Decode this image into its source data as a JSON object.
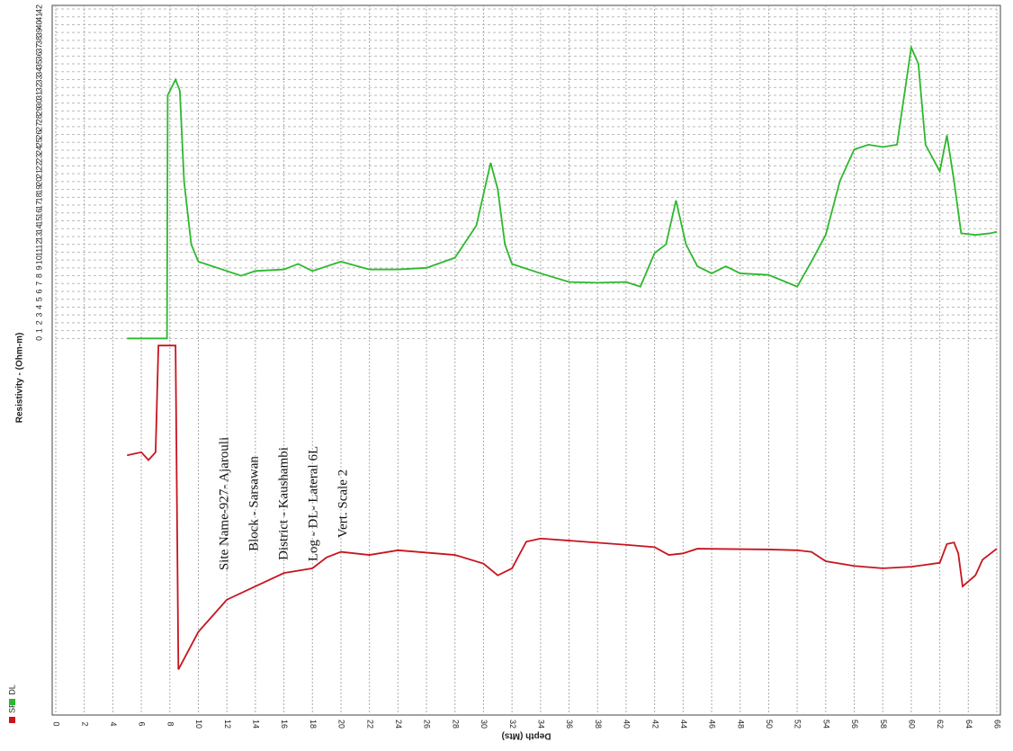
{
  "chart_data": {
    "type": "line",
    "xlabel": "Depth (Mts)",
    "ylabel": "Resistivity - (Ohm-m)",
    "annotations": [
      "Site Name-927- Ajarouli",
      "Block - Sarsawan",
      "District - Kaushambi",
      "Log - DL- Lateral 6L",
      "Vert. Scale 2"
    ],
    "xlim": [
      0,
      66
    ],
    "xticks": [
      0,
      2,
      4,
      6,
      8,
      10,
      12,
      14,
      16,
      18,
      20,
      22,
      24,
      26,
      28,
      30,
      32,
      34,
      36,
      38,
      40,
      42,
      44,
      46,
      48,
      50,
      52,
      54,
      56,
      58,
      60,
      62,
      64,
      66
    ],
    "ylim": [
      -48,
      42
    ],
    "yticks": [
      0,
      1,
      2,
      3,
      4,
      5,
      6,
      7,
      8,
      9,
      10,
      11,
      12,
      13,
      14,
      15,
      16,
      17,
      18,
      19,
      20,
      21,
      22,
      23,
      24,
      25,
      26,
      27,
      28,
      29,
      30,
      31,
      32,
      33,
      34,
      35,
      36,
      37,
      38,
      39,
      40,
      41,
      42
    ],
    "grid": true,
    "legend": "bottom-left",
    "series": [
      {
        "name": "SP",
        "color": "#c8141e",
        "x": [
          5,
          6,
          6.5,
          7,
          7.2,
          8.4,
          8.6,
          10,
          12,
          14,
          16,
          18,
          19,
          20,
          22,
          24,
          28,
          30,
          31,
          32,
          33,
          34,
          40,
          42,
          43,
          44,
          45,
          50,
          52,
          53,
          54,
          56,
          58,
          60,
          62,
          62.5,
          63,
          63.3,
          63.6,
          64.5,
          65,
          66
        ],
        "values": [
          -14.9,
          -14.5,
          -15.5,
          -14.5,
          -0.9,
          -0.9,
          -42.2,
          -37.4,
          -33.3,
          -31.6,
          -29.9,
          -29.3,
          -27.9,
          -27.2,
          -27.6,
          -27.0,
          -27.6,
          -28.7,
          -30.2,
          -29.3,
          -25.9,
          -25.5,
          -26.3,
          -26.6,
          -27.6,
          -27.4,
          -26.8,
          -26.9,
          -27.0,
          -27.2,
          -28.4,
          -29.0,
          -29.3,
          -29.1,
          -28.6,
          -26.2,
          -26.0,
          -27.4,
          -31.6,
          -30.2,
          -28.2,
          -26.8
        ]
      },
      {
        "name": "DL",
        "color": "#2db82d",
        "x": [
          5,
          7.8,
          7.85,
          8.4,
          8.7,
          9,
          9.5,
          10,
          12,
          13,
          14,
          16,
          17,
          18,
          20,
          22,
          24,
          26,
          28,
          29.5,
          30.5,
          31,
          31.5,
          32,
          34,
          36,
          38,
          40,
          41,
          42,
          42.8,
          43.5,
          44.2,
          45,
          46,
          47,
          48,
          50,
          52,
          53,
          54,
          55,
          56,
          57,
          58,
          59,
          60,
          60.5,
          61,
          62,
          62.5,
          63,
          63.5,
          64.5,
          65.5,
          66
        ],
        "values": [
          0,
          0,
          31,
          33,
          31.6,
          20,
          12,
          9.8,
          8.6,
          8,
          8.6,
          8.8,
          9.5,
          8.6,
          9.8,
          8.8,
          8.8,
          9,
          10.3,
          14.4,
          22.4,
          19,
          12,
          9.5,
          8.3,
          7.2,
          7.1,
          7.2,
          6.6,
          10.9,
          12,
          17.6,
          12,
          9.2,
          8.3,
          9.2,
          8.3,
          8.1,
          6.6,
          9.8,
          13.2,
          20.1,
          24.1,
          24.7,
          24.4,
          24.7,
          37.1,
          35,
          24.7,
          21.3,
          25.9,
          20.1,
          13.4,
          13.2,
          13.4,
          13.6
        ]
      }
    ]
  }
}
